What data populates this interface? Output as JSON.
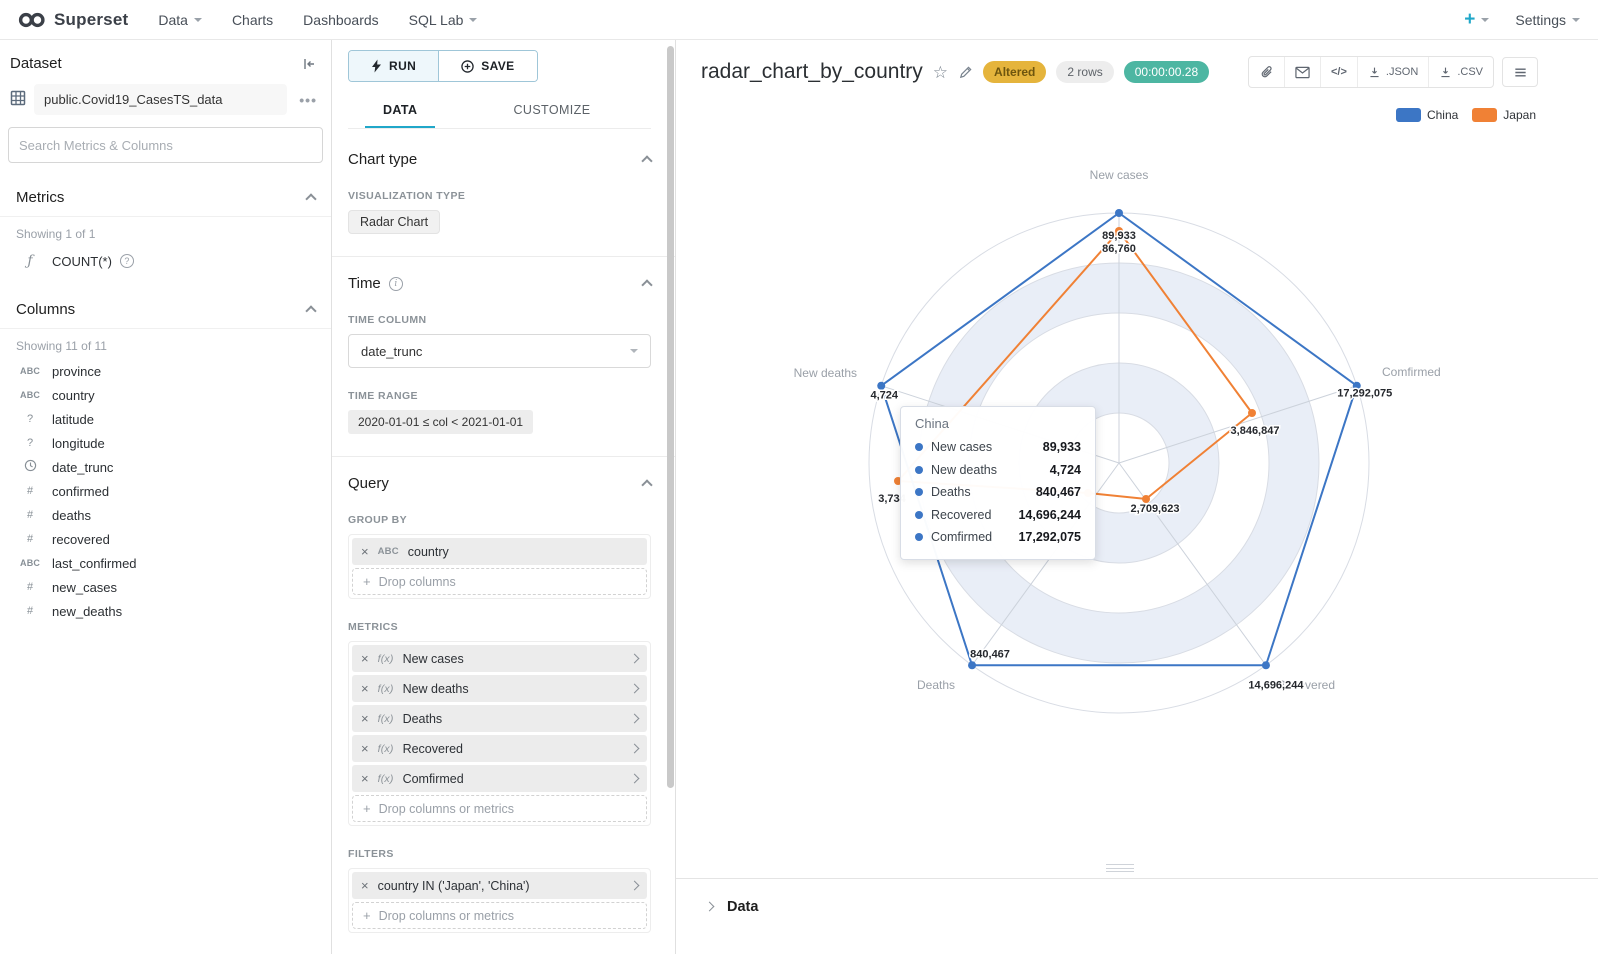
{
  "navbar": {
    "brand": "Superset",
    "items": [
      {
        "label": "Data",
        "caret": true
      },
      {
        "label": "Charts",
        "caret": false
      },
      {
        "label": "Dashboards",
        "caret": false
      },
      {
        "label": "SQL Lab",
        "caret": true
      }
    ],
    "new_button": "+",
    "settings_label": "Settings"
  },
  "dataset_panel": {
    "title": "Dataset",
    "dataset_name": "public.Covid19_CasesTS_data",
    "search_placeholder": "Search Metrics & Columns",
    "metrics": {
      "header": "Metrics",
      "showing": "Showing 1 of 1",
      "items": [
        {
          "icon": "function",
          "name": "COUNT(*)"
        }
      ]
    },
    "columns": {
      "header": "Columns",
      "showing": "Showing 11 of 11",
      "items": [
        {
          "icon": "abc",
          "name": "province"
        },
        {
          "icon": "abc",
          "name": "country"
        },
        {
          "icon": "unknown",
          "name": "latitude"
        },
        {
          "icon": "unknown",
          "name": "longitude"
        },
        {
          "icon": "clock",
          "name": "date_trunc"
        },
        {
          "icon": "num",
          "name": "confirmed"
        },
        {
          "icon": "num",
          "name": "deaths"
        },
        {
          "icon": "num",
          "name": "recovered"
        },
        {
          "icon": "abc",
          "name": "last_confirmed"
        },
        {
          "icon": "num",
          "name": "new_cases"
        },
        {
          "icon": "num",
          "name": "new_deaths"
        }
      ]
    }
  },
  "control_panel": {
    "run_button": "RUN",
    "save_button": "SAVE",
    "tabs": [
      {
        "label": "DATA",
        "active": true
      },
      {
        "label": "CUSTOMIZE",
        "active": false
      }
    ],
    "chart_type_section": {
      "title": "Chart type",
      "viz_label": "VISUALIZATION TYPE",
      "viz_value": "Radar Chart"
    },
    "time_section": {
      "title": "Time",
      "column_label": "TIME COLUMN",
      "column_value": "date_trunc",
      "range_label": "TIME RANGE",
      "range_value": "2020-01-01 ≤ col < 2021-01-01"
    },
    "query_section": {
      "title": "Query",
      "group_by_label": "GROUP BY",
      "group_by_items": [
        {
          "badge": "ABC",
          "label": "country"
        }
      ],
      "group_by_drop": "Drop columns",
      "metrics_label": "METRICS",
      "metric_items": [
        {
          "badge": "f(x)",
          "label": "New cases"
        },
        {
          "badge": "f(x)",
          "label": "New deaths"
        },
        {
          "badge": "f(x)",
          "label": "Deaths"
        },
        {
          "badge": "f(x)",
          "label": "Recovered"
        },
        {
          "badge": "f(x)",
          "label": "Comfirmed"
        }
      ],
      "metrics_drop": "Drop columns or metrics",
      "filters_label": "FILTERS",
      "filter_items": [
        {
          "label": "country IN ('Japan', 'China')"
        }
      ],
      "filters_drop": "Drop columns or metrics"
    }
  },
  "chart_header": {
    "title": "radar_chart_by_country",
    "altered_badge": "Altered",
    "rows_badge": "2 rows",
    "timer_badge": "00:00:00.28",
    "code_label": "</>",
    "json_label": ".JSON",
    "csv_label": ".CSV",
    "data_panel_label": "Data"
  },
  "chart_data": {
    "type": "radar",
    "title": "radar_chart_by_country",
    "indicators": [
      "New cases",
      "Comfirmed",
      "Recovered",
      "Deaths",
      "New deaths"
    ],
    "legend": [
      "China",
      "Japan"
    ],
    "legend_position": "top-right",
    "rings": 5,
    "series": [
      {
        "name": "China",
        "color": "#3c76c5",
        "values": [
          89933,
          17292075,
          14696244,
          840467,
          4724
        ],
        "labels": [
          "89,933",
          "17,292,075",
          "14,696,244",
          "840,467",
          "4,724"
        ]
      },
      {
        "name": "Japan",
        "color": "#f08135",
        "values": [
          86760,
          3846847,
          2709623,
          null,
          3734
        ],
        "labels": [
          "86,760",
          "3,846,847",
          "2,709,623",
          "",
          "3,734"
        ]
      }
    ],
    "tooltip": {
      "series": "China",
      "title": "China",
      "rows": [
        {
          "label": "New cases",
          "value": "89,933"
        },
        {
          "label": "New deaths",
          "value": "4,724"
        },
        {
          "label": "Deaths",
          "value": "840,467"
        },
        {
          "label": "Recovered",
          "value": "14,696,244"
        },
        {
          "label": "Comfirmed",
          "value": "17,292,075"
        }
      ]
    }
  }
}
